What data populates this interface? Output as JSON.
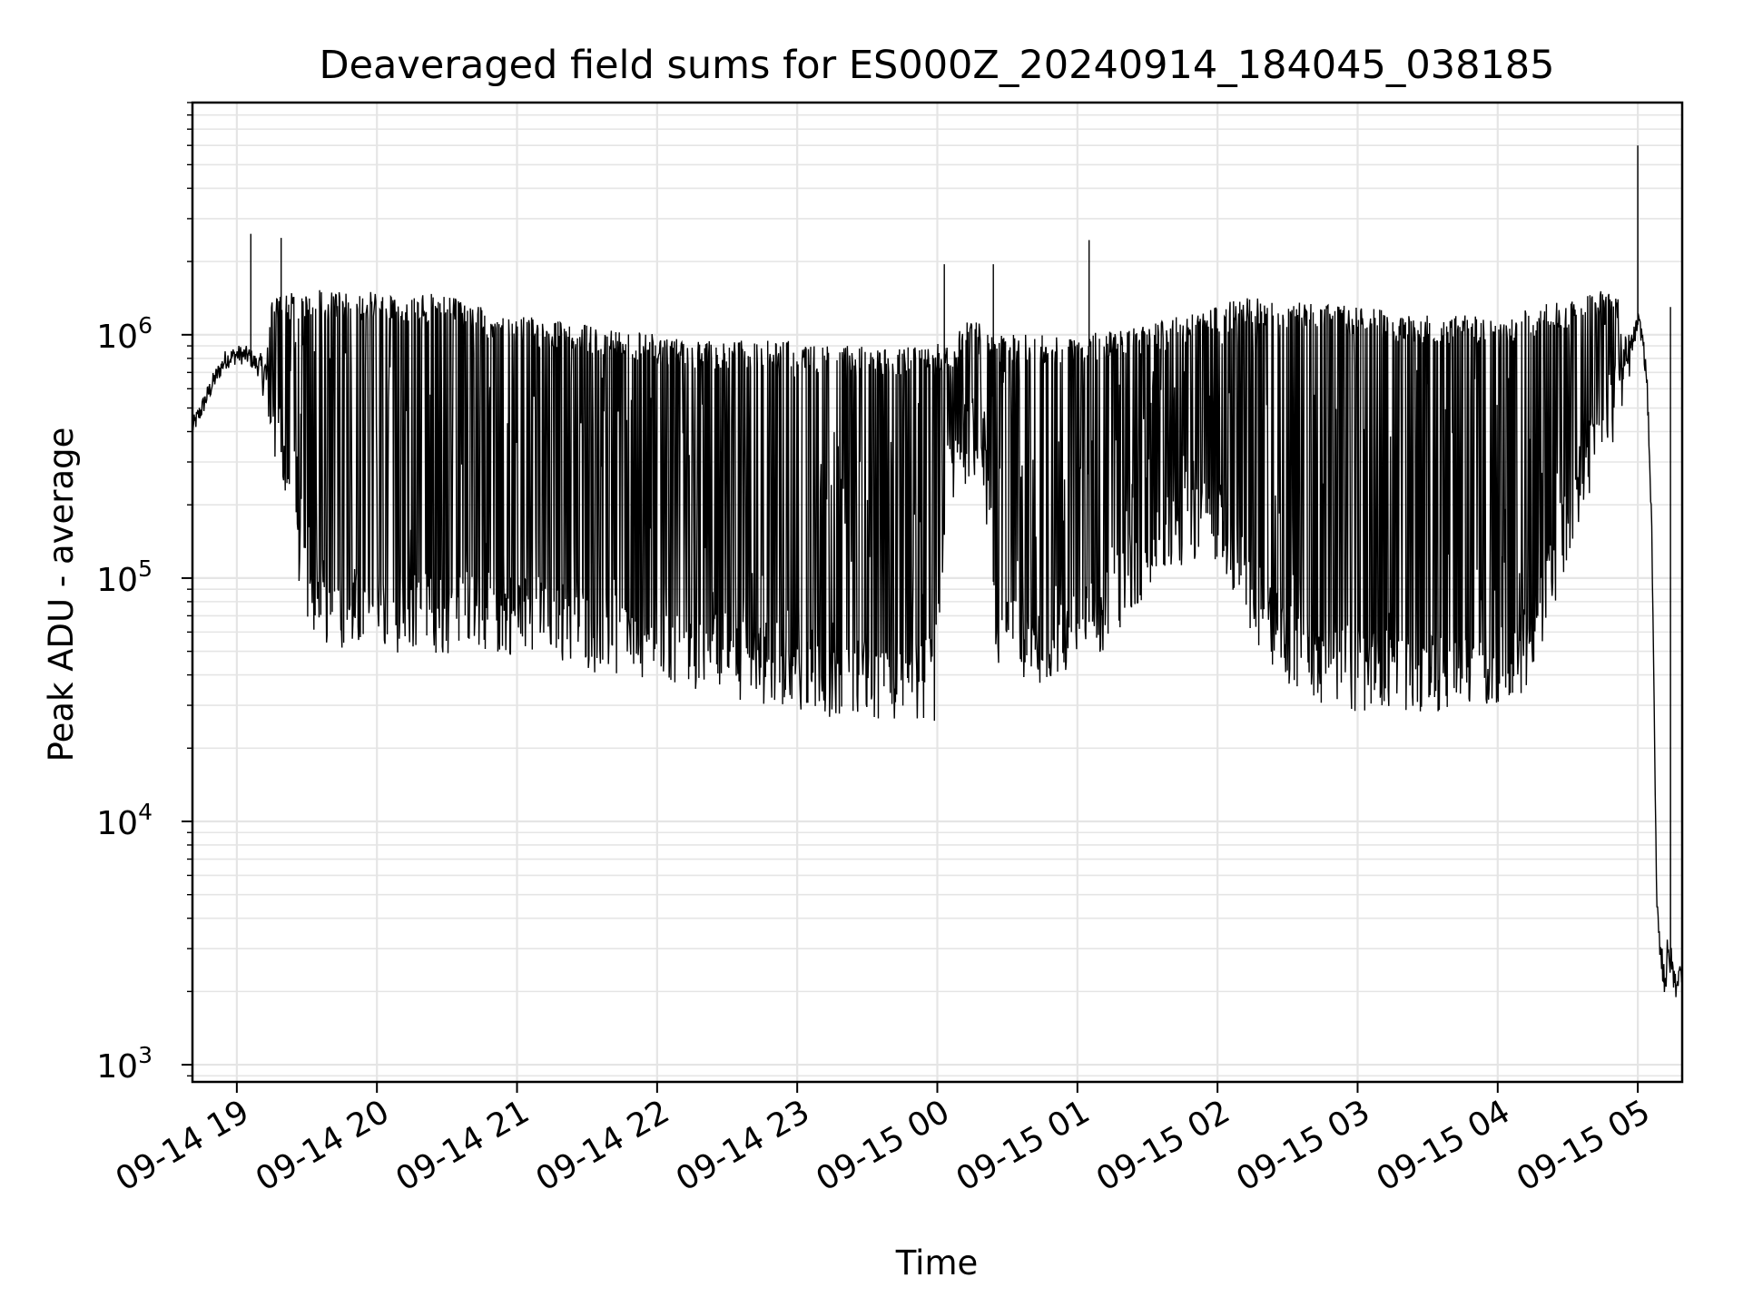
{
  "chart_data": {
    "type": "line",
    "title": "Deaveraged field sums for ES000Z_20240914_184045_038185",
    "xlabel": "Time",
    "ylabel": "Peak ADU - average",
    "yscale": "log",
    "ylim": [
      850,
      9000000
    ],
    "xlim": [
      "2024-09-14 18:41",
      "2024-09-15 05:19"
    ],
    "grid": true,
    "line_color": "#000000",
    "grid_color": "#e5e5e5",
    "x_ticks": [
      "09-14 19",
      "09-14 20",
      "09-14 21",
      "09-14 22",
      "09-14 23",
      "09-15 00",
      "09-15 01",
      "09-15 02",
      "09-15 03",
      "09-15 04",
      "09-15 05"
    ],
    "y_ticks": [
      {
        "base": "10",
        "exp": "3",
        "value": 1000
      },
      {
        "base": "10",
        "exp": "4",
        "value": 10000
      },
      {
        "base": "10",
        "exp": "5",
        "value": 100000
      },
      {
        "base": "10",
        "exp": "6",
        "value": 1000000
      }
    ],
    "series": [
      {
        "x": [
          "2024-09-14 18:41",
          "2024-09-14 18:45",
          "2024-09-14 18:50",
          "2024-09-14 18:55",
          "2024-09-14 19:00",
          "2024-09-14 19:05",
          "2024-09-14 19:10",
          "2024-09-14 19:15",
          "2024-09-14 19:20",
          "2024-09-14 19:25",
          "2024-09-14 19:30",
          "2024-09-14 19:35",
          "2024-09-14 19:40",
          "2024-09-14 19:50",
          "2024-09-14 20:00",
          "2024-09-14 20:15",
          "2024-09-14 20:30",
          "2024-09-14 20:45",
          "2024-09-14 21:00",
          "2024-09-14 21:15",
          "2024-09-14 21:30",
          "2024-09-14 21:45",
          "2024-09-14 22:00",
          "2024-09-14 22:15",
          "2024-09-14 22:30",
          "2024-09-14 22:45",
          "2024-09-14 23:00",
          "2024-09-14 23:15",
          "2024-09-14 23:30",
          "2024-09-14 23:45",
          "2024-09-14 23:59",
          "2024-09-15 00:05",
          "2024-09-15 00:15",
          "2024-09-15 00:20",
          "2024-09-15 00:25",
          "2024-09-15 00:30",
          "2024-09-15 00:45",
          "2024-09-15 01:00",
          "2024-09-15 01:15",
          "2024-09-15 01:30",
          "2024-09-15 01:45",
          "2024-09-15 02:00",
          "2024-09-15 02:15",
          "2024-09-15 02:30",
          "2024-09-15 02:45",
          "2024-09-15 03:00",
          "2024-09-15 03:15",
          "2024-09-15 03:30",
          "2024-09-15 03:45",
          "2024-09-15 04:00",
          "2024-09-15 04:10",
          "2024-09-15 04:20",
          "2024-09-15 04:30",
          "2024-09-15 04:40",
          "2024-09-15 04:50",
          "2024-09-15 04:55",
          "2024-09-15 05:00",
          "2024-09-15 05:02",
          "2024-09-15 05:04",
          "2024-09-15 05:06",
          "2024-09-15 05:08",
          "2024-09-15 05:10",
          "2024-09-15 05:12",
          "2024-09-15 05:14",
          "2024-09-15 05:16",
          "2024-09-15 05:18"
        ],
        "base": [
          400000,
          480000,
          620000,
          760000,
          800000,
          790000,
          700000,
          480000,
          300000,
          170000,
          100000,
          82000,
          78000,
          75000,
          74000,
          73000,
          72000,
          72000,
          72000,
          70000,
          62000,
          56000,
          52000,
          50000,
          48000,
          45000,
          43000,
          40000,
          38000,
          37000,
          38000,
          300000,
          380000,
          350000,
          70000,
          55000,
          55000,
          60000,
          80000,
          120000,
          160000,
          180000,
          80000,
          55000,
          45000,
          42000,
          42000,
          42000,
          43000,
          45000,
          48000,
          80000,
          180000,
          350000,
          550000,
          650000,
          1100000,
          950000,
          600000,
          150000,
          5000,
          2500,
          2100,
          2600,
          2000,
          2300
        ],
        "peak": [
          420000,
          520000,
          650000,
          800000,
          850000,
          820000,
          900000,
          1400000,
          1500000,
          1500000,
          1500000,
          1550000,
          1500000,
          1500000,
          1500000,
          1500000,
          1450000,
          1300000,
          1200000,
          1150000,
          1100000,
          1050000,
          1000000,
          950000,
          950000,
          950000,
          950000,
          900000,
          900000,
          900000,
          950000,
          900000,
          1300000,
          1200000,
          1000000,
          1000000,
          1000000,
          1000000,
          1050000,
          1100000,
          1200000,
          1350000,
          1450000,
          1400000,
          1350000,
          1300000,
          1250000,
          1200000,
          1200000,
          1200000,
          1250000,
          1350000,
          1400000,
          1500000,
          1600000,
          1200000,
          1150000,
          1000000,
          650000,
          160000,
          5000,
          3800,
          4200,
          3500,
          2700,
          2600
        ],
        "spikes": [
          {
            "x": "2024-09-14 19:06",
            "y": 2600000
          },
          {
            "x": "2024-09-14 19:19",
            "y": 2500000
          },
          {
            "x": "2024-09-15 00:03",
            "y": 1950000
          },
          {
            "x": "2024-09-15 00:24",
            "y": 1950000
          },
          {
            "x": "2024-09-15 01:05",
            "y": 2450000
          },
          {
            "x": "2024-09-15 05:00",
            "y": 6000000
          },
          {
            "x": "2024-09-15 05:14",
            "y": 1300000
          }
        ]
      }
    ]
  }
}
